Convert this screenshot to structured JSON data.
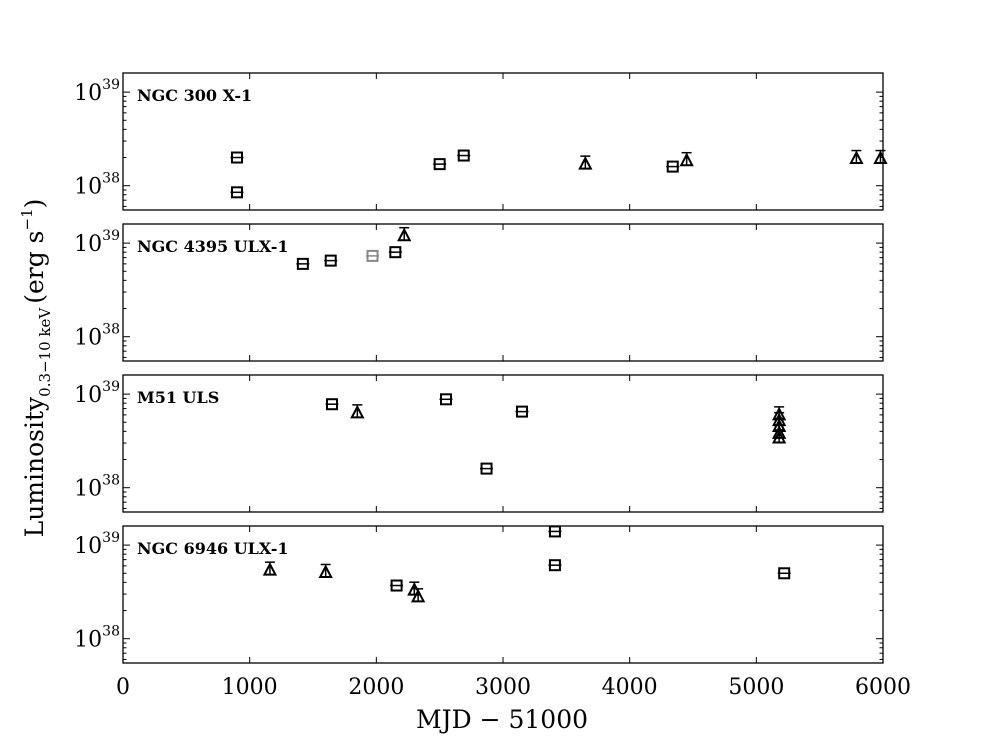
{
  "chart_data": {
    "type": "scatter",
    "xlabel": "MJD − 51000",
    "ylabel": {
      "main": "Luminosity",
      "subscript": "0.3−10 keV",
      "unit": "(erg s",
      "unit_exp": "−1",
      "unit_close": ")"
    },
    "xlim": [
      0,
      6000
    ],
    "xticks": [
      "0",
      "1000",
      "2000",
      "3000",
      "4000",
      "5000",
      "6000"
    ],
    "yscale": "log",
    "grid": false,
    "colors": {
      "default": "#000000",
      "gray": "#888888"
    },
    "panels": [
      {
        "label": "NGC 300 X-1",
        "ylim": [
          5.5e+37,
          1.6e+39
        ],
        "yticks": [
          {
            "base": "10",
            "exp": "38",
            "value": 1e+38
          },
          {
            "base": "10",
            "exp": "39",
            "value": 1e+39
          }
        ],
        "points": [
          {
            "x": 900,
            "y": 2e+38,
            "marker": "square"
          },
          {
            "x": 900,
            "y": 8.5e+37,
            "marker": "square"
          },
          {
            "x": 2500,
            "y": 1.7e+38,
            "marker": "square"
          },
          {
            "x": 2690,
            "y": 2.1e+38,
            "marker": "square"
          },
          {
            "x": 3650,
            "y": 1.7e+38,
            "marker": "triangle"
          },
          {
            "x": 4340,
            "y": 1.6e+38,
            "marker": "square"
          },
          {
            "x": 4450,
            "y": 1.85e+38,
            "marker": "triangle"
          },
          {
            "x": 5790,
            "y": 1.95e+38,
            "marker": "triangle"
          },
          {
            "x": 5980,
            "y": 1.95e+38,
            "marker": "triangle"
          }
        ]
      },
      {
        "label": "NGC 4395 ULX-1",
        "ylim": [
          5.5e+37,
          1.6e+39
        ],
        "yticks": [
          {
            "base": "10",
            "exp": "38",
            "value": 1e+38
          },
          {
            "base": "10",
            "exp": "39",
            "value": 1e+39
          }
        ],
        "points": [
          {
            "x": 1420,
            "y": 6e+38,
            "marker": "square"
          },
          {
            "x": 1640,
            "y": 6.5e+38,
            "marker": "square"
          },
          {
            "x": 1970,
            "y": 7.3e+38,
            "marker": "square",
            "color": "gray"
          },
          {
            "x": 2150,
            "y": 8e+38,
            "marker": "square"
          },
          {
            "x": 2220,
            "y": 1.2e+39,
            "marker": "triangle"
          }
        ]
      },
      {
        "label": "M51 ULS",
        "ylim": [
          5.5e+37,
          1.6e+39
        ],
        "yticks": [
          {
            "base": "10",
            "exp": "38",
            "value": 1e+38
          },
          {
            "base": "10",
            "exp": "39",
            "value": 1e+39
          }
        ],
        "points": [
          {
            "x": 1650,
            "y": 7.8e+38,
            "marker": "square"
          },
          {
            "x": 1850,
            "y": 6.3e+38,
            "marker": "triangle"
          },
          {
            "x": 2550,
            "y": 8.8e+38,
            "marker": "square"
          },
          {
            "x": 2870,
            "y": 1.6e+38,
            "marker": "square"
          },
          {
            "x": 3150,
            "y": 6.5e+38,
            "marker": "square"
          },
          {
            "x": 5180,
            "y": 6e+38,
            "marker": "triangle"
          },
          {
            "x": 5180,
            "y": 5.2e+38,
            "marker": "triangle"
          },
          {
            "x": 5180,
            "y": 4.5e+38,
            "marker": "triangle"
          },
          {
            "x": 5180,
            "y": 3.8e+38,
            "marker": "triangle"
          },
          {
            "x": 5180,
            "y": 3.4e+38,
            "marker": "triangle"
          }
        ]
      },
      {
        "label": "NGC 6946 ULX-1",
        "ylim": [
          5.5e+37,
          1.6e+39
        ],
        "yticks": [
          {
            "base": "10",
            "exp": "38",
            "value": 1e+38
          },
          {
            "base": "10",
            "exp": "39",
            "value": 1e+39
          }
        ],
        "points": [
          {
            "x": 1160,
            "y": 5.4e+38,
            "marker": "triangle"
          },
          {
            "x": 1600,
            "y": 5.1e+38,
            "marker": "triangle"
          },
          {
            "x": 2160,
            "y": 3.7e+38,
            "marker": "square"
          },
          {
            "x": 2300,
            "y": 3.3e+38,
            "marker": "triangle"
          },
          {
            "x": 2330,
            "y": 2.8e+38,
            "marker": "triangle"
          },
          {
            "x": 3410,
            "y": 1.4e+39,
            "marker": "square"
          },
          {
            "x": 3410,
            "y": 6.1e+38,
            "marker": "square"
          },
          {
            "x": 5220,
            "y": 5e+38,
            "marker": "square"
          }
        ]
      }
    ]
  }
}
